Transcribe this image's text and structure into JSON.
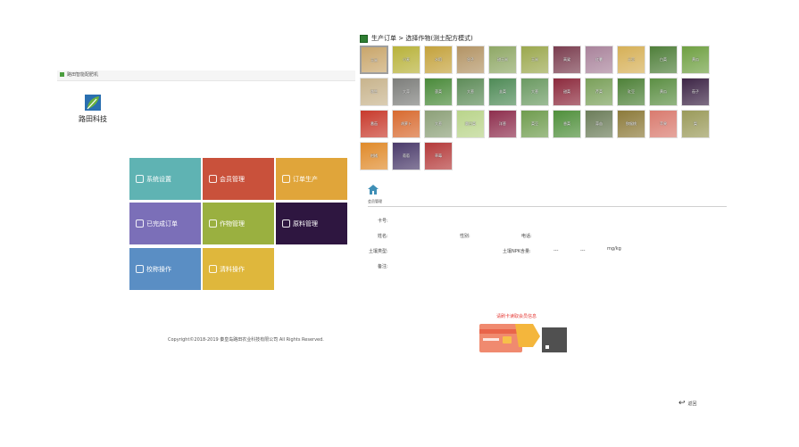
{
  "window": {
    "title": "路田智能配肥机"
  },
  "brand": {
    "name": "路田科技"
  },
  "menu": [
    {
      "label": "系统设置",
      "icon": "gear-icon",
      "color": "#5fb3b3"
    },
    {
      "label": "会员管理",
      "icon": "user-icon",
      "color": "#c9513b"
    },
    {
      "label": "订单生产",
      "icon": "document-icon",
      "color": "#e0a53a"
    },
    {
      "label": "已完成订单",
      "icon": "checklist-icon",
      "color": "#7b6fb8"
    },
    {
      "label": "作物管理",
      "icon": "plant-icon",
      "color": "#9ab040"
    },
    {
      "label": "原料管理",
      "icon": "grid-icon",
      "color": "#2e1640"
    },
    {
      "label": "校称操作",
      "icon": "scale-icon",
      "color": "#5a8ec4"
    },
    {
      "label": "清料操作",
      "icon": "box-icon",
      "color": "#dfb73c"
    }
  ],
  "copyright": "Copyright©2018-2019 秦皇岛路田农业科技有限公司 All Rights Reserved.",
  "breadcrumb": "生产订单 > 选择作物(测土配方模式)",
  "crops": [
    {
      "label": "玉米",
      "color": "#c9a66b"
    },
    {
      "label": "小麦",
      "color": "#b8b23a"
    },
    {
      "label": "水稻",
      "color": "#c4a23c"
    },
    {
      "label": "谷子",
      "color": "#b39465"
    },
    {
      "label": "甜玉米",
      "color": "#8fa866"
    },
    {
      "label": "玉米",
      "color": "#9ba84e"
    },
    {
      "label": "高粱",
      "color": "#7a3d4f"
    },
    {
      "label": "红薯",
      "color": "#a9839b"
    },
    {
      "label": "土豆",
      "color": "#d6b057"
    },
    {
      "label": "白菜",
      "color": "#4f7f3a"
    },
    {
      "label": "黄瓜",
      "color": "#6fa042"
    },
    {
      "label": "花生",
      "color": "#c8b48d"
    },
    {
      "label": "大蒜",
      "color": "#7d7e7b"
    },
    {
      "label": "菠菜",
      "color": "#4a8a3a"
    },
    {
      "label": "大葱",
      "color": "#5e8c59"
    },
    {
      "label": "韭菜",
      "color": "#4f8b57"
    },
    {
      "label": "大葱",
      "color": "#6b9a62"
    },
    {
      "label": "甜菜",
      "color": "#8c2a3d"
    },
    {
      "label": "芹菜",
      "color": "#7aa05a"
    },
    {
      "label": "豇豆",
      "color": "#4e8138"
    },
    {
      "label": "黄瓜",
      "color": "#5c8f44"
    },
    {
      "label": "茄子",
      "color": "#3d2546"
    },
    {
      "label": "番茄",
      "color": "#c83a2c"
    },
    {
      "label": "胡萝卜",
      "color": "#d86a2f"
    },
    {
      "label": "大葱",
      "color": "#8ca078"
    },
    {
      "label": "圆白菜",
      "color": "#b9d48a"
    },
    {
      "label": "洋葱",
      "color": "#8e2f4e"
    },
    {
      "label": "菜豆",
      "color": "#6f9c4e"
    },
    {
      "label": "香菜",
      "color": "#4f8f3b"
    },
    {
      "label": "蒜苗",
      "color": "#6c7d5a"
    },
    {
      "label": "猕猴桃",
      "color": "#8c7a3a"
    },
    {
      "label": "苹果",
      "color": "#d97a6e"
    },
    {
      "label": "梨",
      "color": "#9a9a5a"
    },
    {
      "label": "柑橘",
      "color": "#e08a2a"
    },
    {
      "label": "葡萄",
      "color": "#4a3a6a"
    },
    {
      "label": "草莓",
      "color": "#b43a3a"
    }
  ],
  "member_section": {
    "title": "会员管理",
    "card_no": "卡号:",
    "name": "姓名:",
    "gender": "性别:",
    "phone": "电话:",
    "soil_type": "土壤类型:",
    "npk": "土壤NPK含量:",
    "dash1": "---",
    "dash2": "---",
    "unit": "mg/kg",
    "remark": "备注:"
  },
  "card_prompt": "请刷卡读取会员信息",
  "back_label": "返回"
}
